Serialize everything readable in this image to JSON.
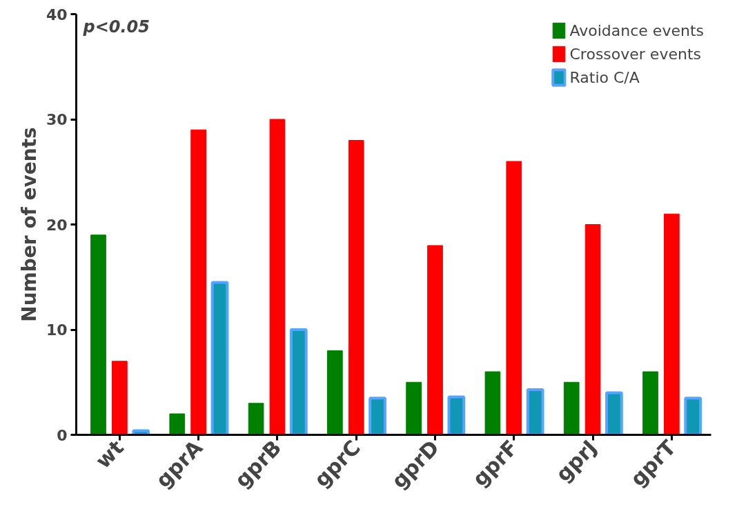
{
  "chart_data": {
    "type": "bar",
    "ylabel": "Number of events",
    "categories": [
      "wt",
      "gprA",
      "gprB",
      "gprC",
      "gprD",
      "gprF",
      "gprJ",
      "gprT"
    ],
    "series": [
      {
        "name": "Avoidance events",
        "color": "#008000",
        "values": [
          19,
          2,
          3,
          8,
          5,
          6,
          5,
          6
        ]
      },
      {
        "name": "Crossover events",
        "color": "#ff0000",
        "values": [
          7,
          29,
          30,
          28,
          18,
          26,
          20,
          21
        ]
      },
      {
        "name": "Ratio C/A",
        "color": "#1097b3",
        "values": [
          0.4,
          14.5,
          10,
          3.5,
          3.6,
          4.3,
          4,
          3.5
        ]
      }
    ],
    "ylim": [
      0,
      40
    ],
    "yticks": [
      0,
      10,
      20,
      30,
      40
    ],
    "grid": false,
    "legend": "top right",
    "annotations": [
      "p<0.05"
    ]
  }
}
